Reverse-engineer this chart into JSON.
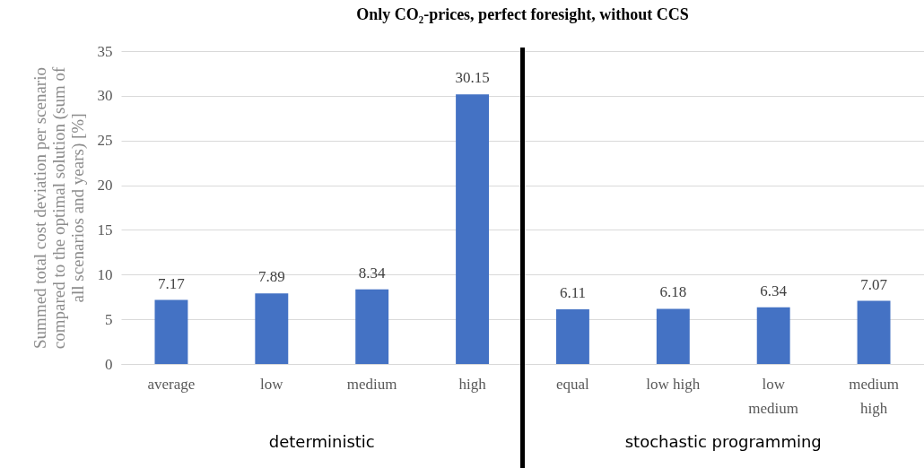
{
  "chart_data": {
    "type": "bar",
    "title": "Only CO₂-prices, perfect foresight, without CCS",
    "ylabel": "Summed total cost deviation per scenario compared to the optimal solution (sum of all scenarios and years) [%]",
    "categories": [
      "average",
      "low",
      "medium",
      "high",
      "equal",
      "low high",
      "low medium",
      "medium high"
    ],
    "values": [
      7.17,
      7.89,
      8.34,
      30.15,
      6.11,
      6.18,
      6.34,
      7.07
    ],
    "color": "#4472c4",
    "ylim": [
      0,
      35
    ],
    "yticks": [
      0,
      5,
      10,
      15,
      20,
      25,
      30,
      35
    ],
    "grid": "y",
    "data_labels": true,
    "ref_lines": [
      {
        "axis": "x",
        "value": "equal",
        "color": "#000000"
      }
    ],
    "annotations": [
      "deterministic",
      "stochastic programming"
    ]
  }
}
